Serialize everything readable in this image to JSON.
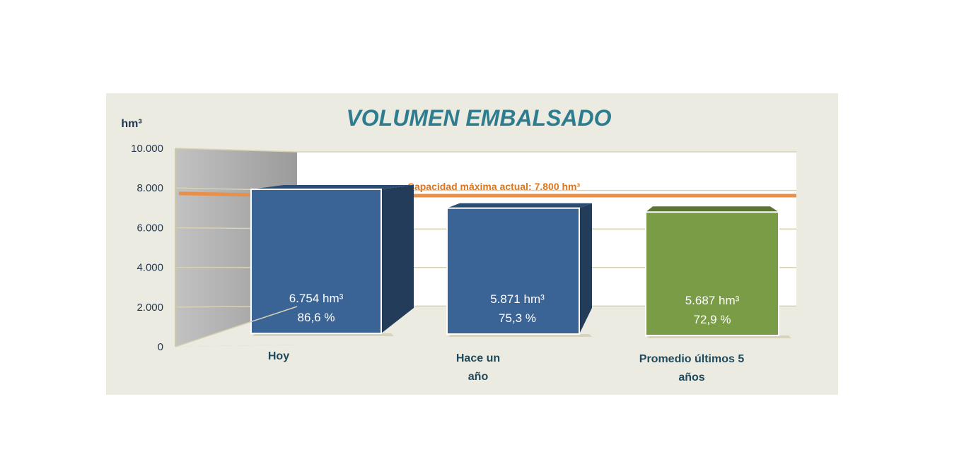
{
  "chart_data": {
    "type": "bar",
    "title": "VOLUMEN EMBALSADO",
    "ylabel": "hm³",
    "xlabel": "",
    "ylim": [
      0,
      10000
    ],
    "yticks": [
      "0",
      "2.000",
      "4.000",
      "6.000",
      "8.000",
      "10.000"
    ],
    "ytick_values": [
      0,
      2000,
      4000,
      6000,
      8000,
      10000
    ],
    "grid": true,
    "categories": [
      "Hoy",
      "Hace un año",
      "Promedio últimos 5 años"
    ],
    "category_lines": [
      [
        "Hoy"
      ],
      [
        "Hace un",
        "año"
      ],
      [
        "Promedio últimos 5",
        "años"
      ]
    ],
    "values": [
      6754,
      5871,
      5687
    ],
    "value_labels": [
      "6.754 hm³",
      "5.871 hm³",
      "5.687 hm³"
    ],
    "percent_labels": [
      "86,6 %",
      "75,3 %",
      "72,9 %"
    ],
    "bar_colors": [
      "#3b6496",
      "#3b6496",
      "#7a9c47"
    ],
    "reference_line": {
      "value": 7800,
      "label": "Capacidad máxima actual: 7.800 hm³",
      "color": "#e8904a"
    },
    "colors": {
      "title": "#2e7d8f",
      "axis_text": "#1f3550",
      "category_text": "#1f4a5c",
      "reference_text": "#d9761f",
      "side_wall": "#a6a6a6",
      "panel": "#ecebe2",
      "plot_back": "#ffffff",
      "grid": "#d8d2ae"
    }
  }
}
